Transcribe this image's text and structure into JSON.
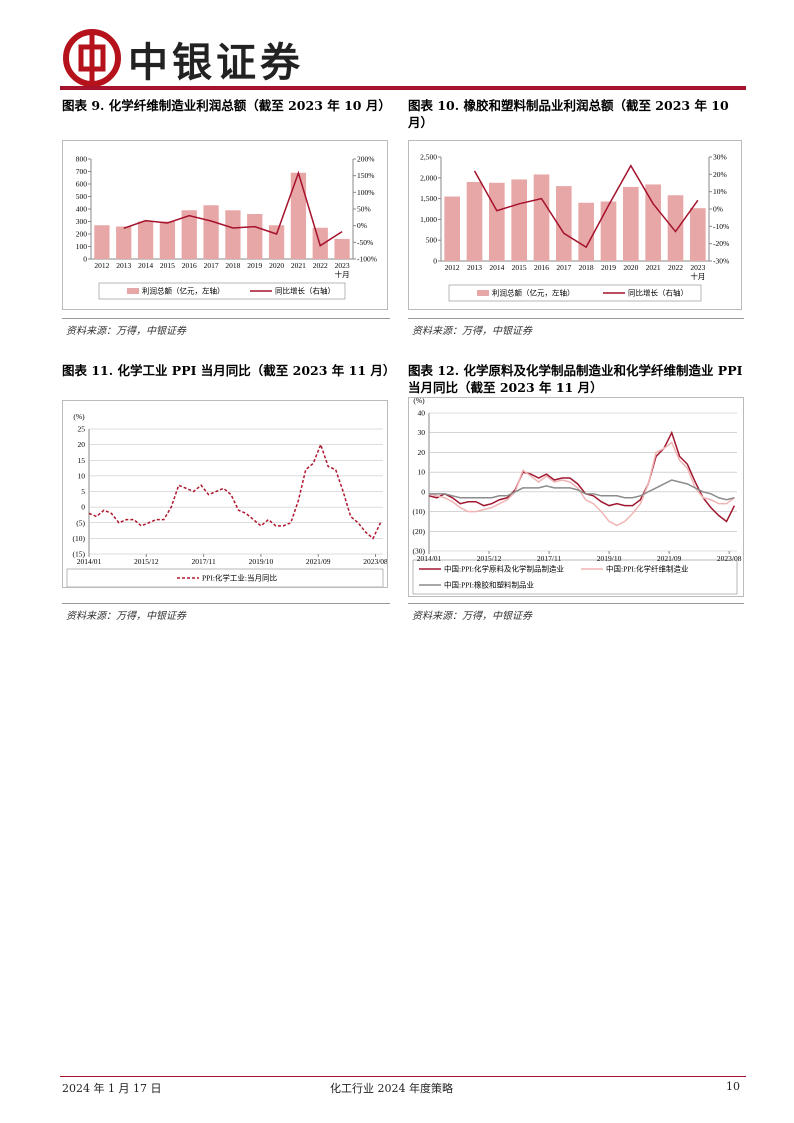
{
  "header": {
    "logo": "中银证券"
  },
  "chart_data": [
    {
      "type": "combo",
      "title": "图表 9. 化学纤维制造业利润总额（截至 2023 年 10 月）",
      "source": "资料来源：万得，中银证券",
      "categories": [
        "2012",
        "2013",
        "2014",
        "2015",
        "2016",
        "2017",
        "2018",
        "2019",
        "2020",
        "2021",
        "2022",
        "2023\n十月"
      ],
      "series": [
        {
          "name": "利润总额（亿元，左轴）",
          "color": "#e8a7a7",
          "values": [
            270,
            260,
            300,
            300,
            390,
            430,
            390,
            360,
            270,
            690,
            250,
            160
          ]
        },
        {
          "name": "同比增长（右轴）",
          "color": "#a5122c",
          "axis": "y2",
          "values": [
            null,
            -8,
            15,
            8,
            30,
            14,
            -7,
            -3,
            -25,
            158,
            -60,
            -18
          ]
        }
      ],
      "ylim": [
        0,
        800
      ],
      "yticks": [
        0,
        100,
        200,
        300,
        400,
        500,
        600,
        700,
        800
      ],
      "y2lim": [
        -100,
        200
      ],
      "y2ticks": [
        {
          "value": -100,
          "label": "-100%"
        },
        {
          "value": -50,
          "label": "-50%"
        },
        {
          "value": 0,
          "label": "0%"
        },
        {
          "value": 50,
          "label": "50%"
        },
        {
          "value": 100,
          "label": "100%"
        },
        {
          "value": 150,
          "label": "150%"
        },
        {
          "value": 200,
          "label": "200%"
        }
      ],
      "grid": false
    },
    {
      "type": "combo",
      "title": "图表 10. 橡胶和塑料制品业利润总额（截至 2023 年 10 月）",
      "source": "资料来源：万得，中银证券",
      "categories": [
        "2012",
        "2013",
        "2014",
        "2015",
        "2016",
        "2017",
        "2018",
        "2019",
        "2020",
        "2021",
        "2022",
        "2023\n十月"
      ],
      "series": [
        {
          "name": "利润总额（亿元，左轴）",
          "color": "#e8a7a7",
          "values": [
            1550,
            1900,
            1880,
            1960,
            2080,
            1800,
            1400,
            1430,
            1780,
            1840,
            1580,
            1270
          ]
        },
        {
          "name": "同比增长（右轴）",
          "color": "#a5122c",
          "axis": "y2",
          "values": [
            null,
            22,
            -1,
            3,
            6,
            -14,
            -22,
            2,
            25,
            3,
            -13,
            5
          ]
        }
      ],
      "ylim": [
        0,
        2500
      ],
      "yticks": [
        0,
        500,
        {
          "value": 1000,
          "label": "1,000"
        },
        {
          "value": 1500,
          "label": "1,500"
        },
        {
          "value": 2000,
          "label": "2,000"
        },
        {
          "value": 2500,
          "label": "2,500"
        }
      ],
      "y2lim": [
        -30,
        30
      ],
      "y2ticks": [
        {
          "value": -30,
          "label": "-30%"
        },
        {
          "value": -20,
          "label": "-20%"
        },
        {
          "value": -10,
          "label": "-10%"
        },
        {
          "value": 0,
          "label": "0%"
        },
        {
          "value": 10,
          "label": "10%"
        },
        {
          "value": 20,
          "label": "20%"
        },
        {
          "value": 30,
          "label": "30%"
        }
      ],
      "grid": false
    },
    {
      "type": "line",
      "title": "图表 11. 化学工业 PPI 当月同比（截至 2023 年 11 月）",
      "source": "资料来源：万得，中银证券",
      "y_unit": "(%)",
      "x": [
        "2014/01",
        "2014/04",
        "2014/07",
        "2014/10",
        "2015/01",
        "2015/04",
        "2015/07",
        "2015/10",
        "2016/01",
        "2016/04",
        "2016/07",
        "2016/10",
        "2017/01",
        "2017/04",
        "2017/07",
        "2017/10",
        "2018/01",
        "2018/04",
        "2018/07",
        "2018/10",
        "2019/01",
        "2019/04",
        "2019/07",
        "2019/10",
        "2020/01",
        "2020/04",
        "2020/07",
        "2020/10",
        "2021/01",
        "2021/04",
        "2021/07",
        "2021/10",
        "2022/01",
        "2022/04",
        "2022/07",
        "2022/10",
        "2023/01",
        "2023/04",
        "2023/07",
        "2023/10"
      ],
      "series": [
        {
          "name": "PPI:化学工业:当月同比",
          "color": "#b0172e",
          "line_style": "dashed",
          "values": [
            -2,
            -3,
            -1,
            -2,
            -5,
            -4,
            -4,
            -6,
            -5,
            -4,
            -4,
            0,
            7,
            6,
            5,
            7,
            4,
            5,
            6,
            4,
            -1,
            -2,
            -4,
            -6,
            -4,
            -6,
            -6,
            -5,
            2,
            12,
            14,
            20,
            13,
            12,
            5,
            -3,
            -5,
            -8,
            -10,
            -5
          ]
        }
      ],
      "xlim": [
        "2014/01",
        "2023/11"
      ],
      "xticks": [
        "2014/01",
        "2015/12",
        "2017/11",
        "2019/10",
        "2021/09",
        "2023/08"
      ],
      "ylim": [
        -15,
        25
      ],
      "yticks": [
        {
          "value": -15,
          "label": "(15)"
        },
        {
          "value": -10,
          "label": "(10)"
        },
        {
          "value": -5,
          "label": "(5)"
        },
        0,
        5,
        10,
        15,
        20,
        25
      ],
      "grid": true
    },
    {
      "type": "line",
      "title": "图表 12. 化学原料及化学制品制造业和化学纤维制造业 PPI 当月同比（截至 2023 年 11 月）",
      "source": "资料来源：万得，中银证券",
      "y_unit": "(%)",
      "x": [
        "2014/01",
        "2014/04",
        "2014/07",
        "2014/10",
        "2015/01",
        "2015/04",
        "2015/07",
        "2015/10",
        "2016/01",
        "2016/04",
        "2016/07",
        "2016/10",
        "2017/01",
        "2017/04",
        "2017/07",
        "2017/10",
        "2018/01",
        "2018/04",
        "2018/07",
        "2018/10",
        "2019/01",
        "2019/04",
        "2019/07",
        "2019/10",
        "2020/01",
        "2020/04",
        "2020/07",
        "2020/10",
        "2021/01",
        "2021/04",
        "2021/07",
        "2021/10",
        "2022/01",
        "2022/04",
        "2022/07",
        "2022/10",
        "2023/01",
        "2023/04",
        "2023/07",
        "2023/10"
      ],
      "series": [
        {
          "name": "中国:PPI:化学原料及化学制品制造业",
          "color": "#a01830",
          "values": [
            -2,
            -3,
            -1,
            -3,
            -6,
            -5,
            -5,
            -7,
            -6,
            -4,
            -3,
            1,
            10,
            9,
            7,
            9,
            6,
            7,
            7,
            4,
            -1,
            -2,
            -5,
            -7,
            -6,
            -7,
            -7,
            -4,
            4,
            18,
            22,
            30,
            18,
            14,
            5,
            -3,
            -8,
            -12,
            -15,
            -7
          ]
        },
        {
          "name": "中国:PPI:化学纤维制造业",
          "color": "#f0b4b4",
          "values": [
            -1,
            -2,
            -3,
            -5,
            -8,
            -10,
            -10,
            -9,
            -8,
            -6,
            -4,
            0,
            11,
            8,
            5,
            8,
            5,
            6,
            5,
            2,
            -4,
            -6,
            -10,
            -15,
            -17,
            -15,
            -11,
            -6,
            4,
            20,
            22,
            25,
            16,
            12,
            2,
            -3,
            -4,
            -6,
            -6,
            -3
          ]
        },
        {
          "name": "中国:PPI:橡胶和塑料制品业",
          "color": "#8c8c8c",
          "values": [
            -1,
            -1,
            -1,
            -2,
            -3,
            -3,
            -3,
            -3,
            -3,
            -2,
            -2,
            0,
            2,
            2,
            2,
            3,
            2,
            2,
            2,
            1,
            -1,
            -1,
            -2,
            -2,
            -2,
            -3,
            -3,
            -2,
            0,
            2,
            4,
            6,
            5,
            4,
            2,
            0,
            -1,
            -3,
            -4,
            -3
          ]
        }
      ],
      "xlim": [
        "2014/01",
        "2023/11"
      ],
      "xticks": [
        "2014/01",
        "2015/12",
        "2017/11",
        "2019/10",
        "2021/09",
        "2023/08"
      ],
      "ylim": [
        -30,
        40
      ],
      "yticks": [
        {
          "value": -30,
          "label": "(30)"
        },
        {
          "value": -20,
          "label": "(20)"
        },
        {
          "value": -10,
          "label": "(10)"
        },
        0,
        10,
        20,
        30,
        40
      ],
      "grid": true
    }
  ],
  "footer": {
    "date": "2024 年 1 月 17 日",
    "title": "化工行业 2024 年度策略",
    "page": 10
  }
}
